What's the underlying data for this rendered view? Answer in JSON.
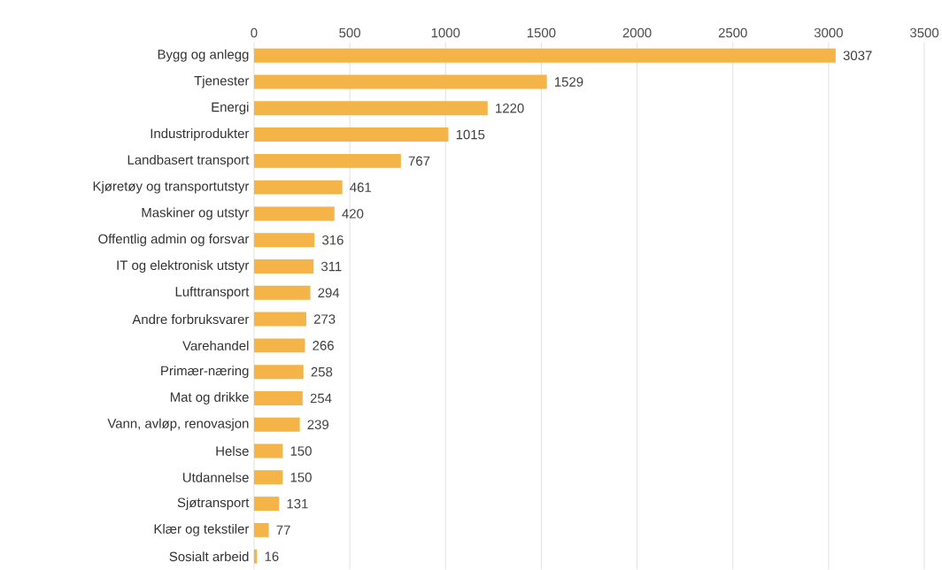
{
  "chart_data": {
    "type": "bar",
    "orientation": "horizontal",
    "categories": [
      "Bygg og anlegg",
      "Tjenester",
      "Energi",
      "Industriprodukter",
      "Landbasert transport",
      "Kjøretøy og transportutstyr",
      "Maskiner og utstyr",
      "Offentlig admin og forsvar",
      "IT og elektronisk utstyr",
      "Lufttransport",
      "Andre forbruksvarer",
      "Varehandel",
      "Primær-næring",
      "Mat og drikke",
      "Vann, avløp, renovasjon",
      "Helse",
      "Utdannelse",
      "Sjøtransport",
      "Klær og tekstiler",
      "Sosialt arbeid"
    ],
    "values": [
      3037,
      1529,
      1220,
      1015,
      767,
      461,
      420,
      316,
      311,
      294,
      273,
      266,
      258,
      254,
      239,
      150,
      150,
      131,
      77,
      16
    ],
    "color": "#f4b447",
    "xlim": [
      0,
      3500
    ],
    "xticks": [
      0,
      500,
      1000,
      1500,
      2000,
      2500,
      3000,
      3500
    ],
    "grid": "x",
    "data_labels": true
  }
}
